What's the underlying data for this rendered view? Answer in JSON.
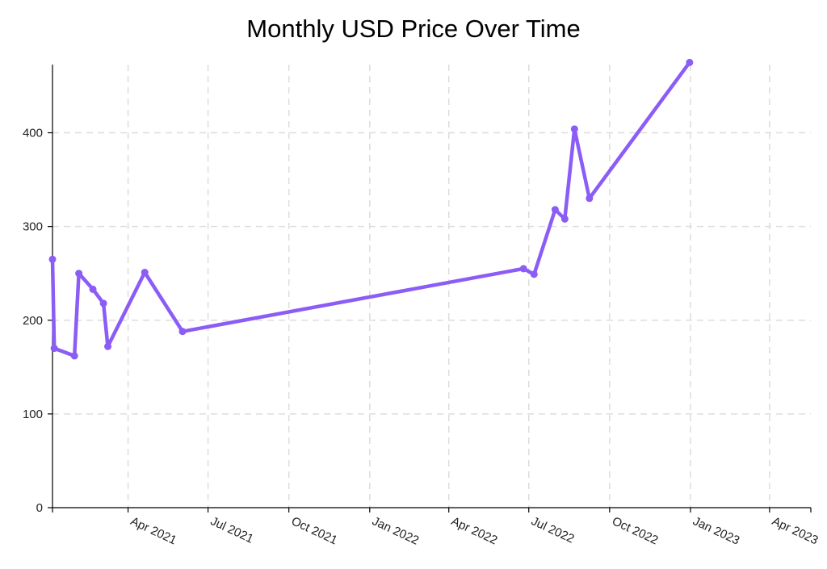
{
  "chart_data": {
    "type": "line",
    "title": "Monthly USD Price Over Time",
    "xlabel": "",
    "ylabel": "",
    "x_ticks": [
      "Apr 2021",
      "Jul 2021",
      "Oct 2021",
      "Jan 2022",
      "Apr 2022",
      "Jul 2022",
      "Oct 2022",
      "Jan 2023",
      "Apr 2023"
    ],
    "x_tick_dates": [
      "2021-04-01",
      "2021-07-01",
      "2021-10-01",
      "2022-01-01",
      "2022-04-01",
      "2022-07-01",
      "2022-10-01",
      "2023-01-01",
      "2023-04-01"
    ],
    "y_ticks": [
      0,
      100,
      200,
      300,
      400
    ],
    "xlim": [
      "2021-01-05",
      "2023-05-18"
    ],
    "ylim": [
      0,
      490
    ],
    "grid": true,
    "line_color": "#8b5cf6",
    "points": [
      {
        "x": "2021-01-05",
        "y": 265
      },
      {
        "x": "2021-01-07",
        "y": 170
      },
      {
        "x": "2021-01-30",
        "y": 162
      },
      {
        "x": "2021-02-04",
        "y": 250
      },
      {
        "x": "2021-02-20",
        "y": 233
      },
      {
        "x": "2021-03-04",
        "y": 218
      },
      {
        "x": "2021-03-09",
        "y": 172
      },
      {
        "x": "2021-04-20",
        "y": 251
      },
      {
        "x": "2021-06-02",
        "y": 188
      },
      {
        "x": "2022-06-25",
        "y": 255
      },
      {
        "x": "2022-07-07",
        "y": 249
      },
      {
        "x": "2022-07-31",
        "y": 318
      },
      {
        "x": "2022-08-11",
        "y": 308
      },
      {
        "x": "2022-08-22",
        "y": 404
      },
      {
        "x": "2022-09-08",
        "y": 330
      },
      {
        "x": "2022-12-31",
        "y": 475
      }
    ]
  }
}
